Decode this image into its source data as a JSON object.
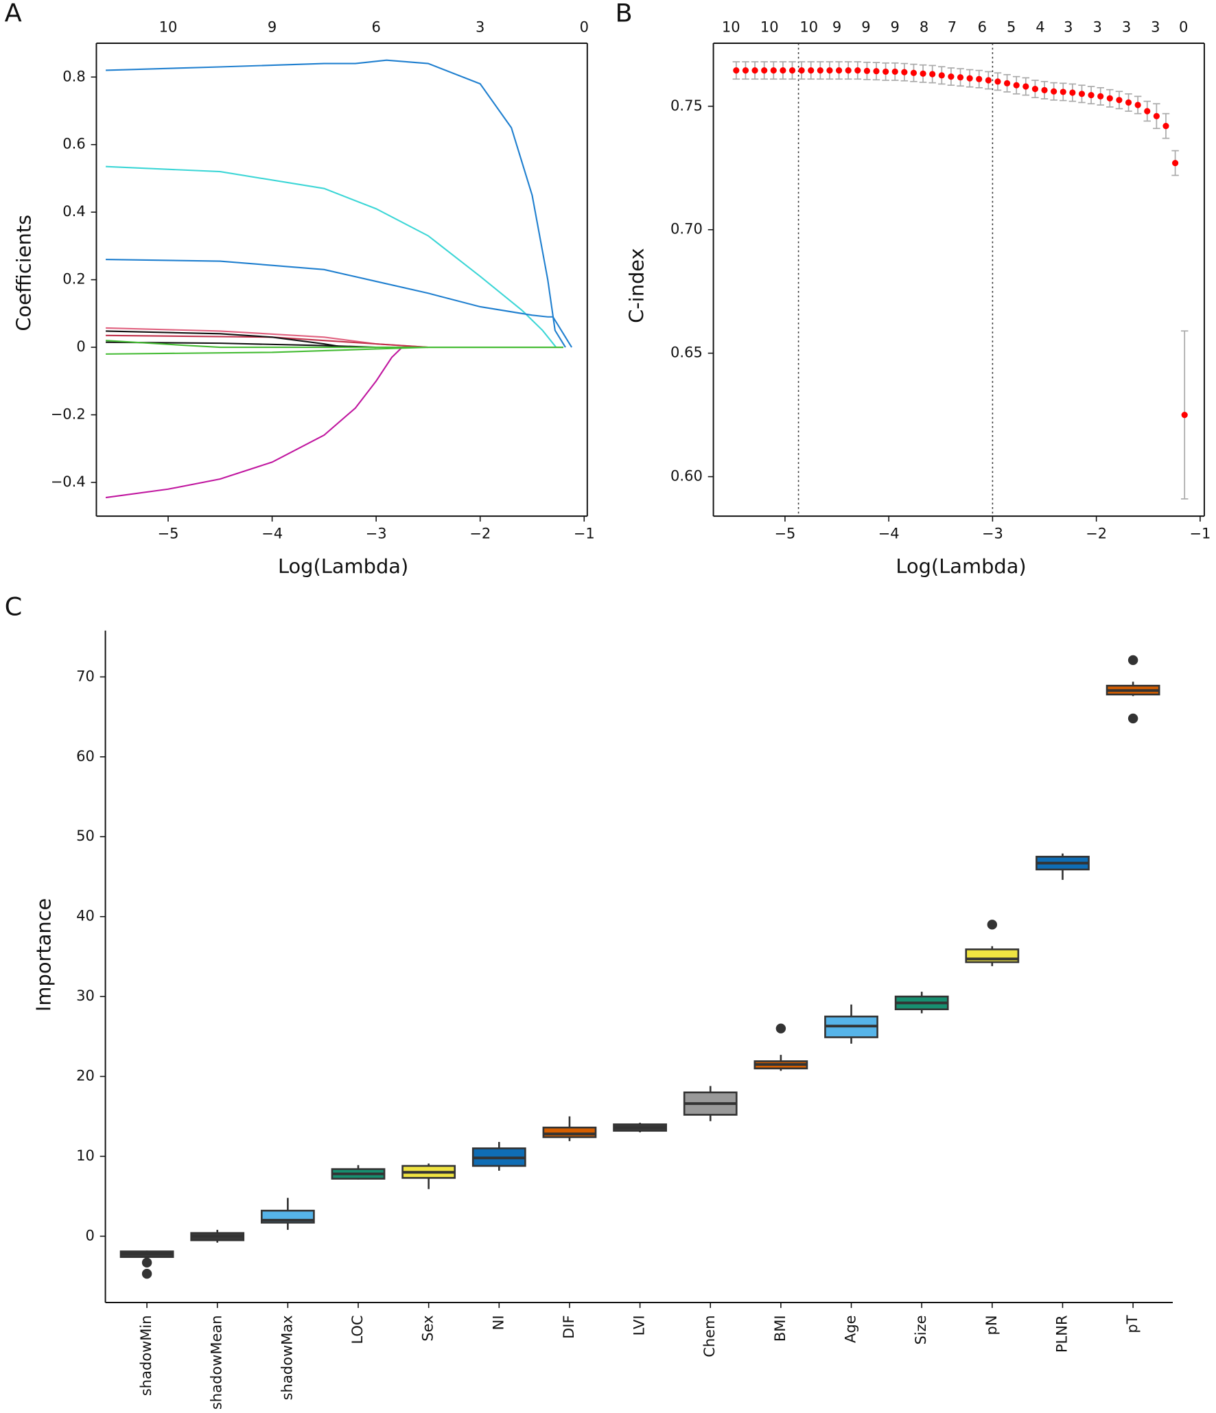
{
  "chart_data": [
    {
      "type": "line",
      "panel": "A",
      "xlabel": "Log(Lambda)",
      "ylabel": "Coefficients",
      "xlim": [
        -5.69,
        -0.97
      ],
      "ylim": [
        -0.5,
        0.9
      ],
      "xticks": [
        {
          "value": -5,
          "label": "−5"
        },
        {
          "value": -4,
          "label": "−4"
        },
        {
          "value": -3,
          "label": "−3"
        },
        {
          "value": -2,
          "label": "−2"
        },
        {
          "value": -1,
          "label": "−1"
        }
      ],
      "yticks": [
        {
          "value": -0.4,
          "label": "−0.4"
        },
        {
          "value": -0.2,
          "label": "−0.2"
        },
        0,
        0.2,
        0.4,
        0.6,
        0.8
      ],
      "top_ticks": [
        {
          "value": -5,
          "label": "10"
        },
        {
          "value": -4,
          "label": "9"
        },
        {
          "value": -3,
          "label": "6"
        },
        {
          "value": -2,
          "label": "3"
        },
        {
          "value": -1,
          "label": "0"
        }
      ],
      "series": [
        {
          "color": "#1f7fcf",
          "x": [
            -5.6,
            -4.5,
            -3.5,
            -3.2,
            -2.9,
            -2.5,
            -2.0,
            -1.7,
            -1.5,
            -1.35,
            -1.28,
            -1.18
          ],
          "values": [
            0.82,
            0.83,
            0.84,
            0.84,
            0.85,
            0.84,
            0.78,
            0.65,
            0.45,
            0.2,
            0.05,
            0
          ]
        },
        {
          "color": "#3cd6d6",
          "x": [
            -5.6,
            -4.5,
            -3.5,
            -3.0,
            -2.5,
            -2.0,
            -1.6,
            -1.4,
            -1.27
          ],
          "values": [
            0.535,
            0.52,
            0.47,
            0.41,
            0.33,
            0.21,
            0.11,
            0.05,
            0
          ]
        },
        {
          "color": "#1f7fcf",
          "x": [
            -5.6,
            -4.5,
            -3.5,
            -3.0,
            -2.5,
            -2.0,
            -1.5,
            -1.35,
            -1.3,
            -1.2,
            -1.12
          ],
          "values": [
            0.26,
            0.255,
            0.23,
            0.195,
            0.16,
            0.12,
            0.095,
            0.09,
            0.09,
            0.04,
            0
          ]
        },
        {
          "color": "#e0607e",
          "x": [
            -5.6,
            -4.5,
            -3.5,
            -3.0,
            -2.5
          ],
          "values": [
            0.057,
            0.048,
            0.03,
            0.01,
            0
          ]
        },
        {
          "color": "#c0304a",
          "x": [
            -5.6,
            -4.0,
            -3.0,
            -2.5
          ],
          "values": [
            0.035,
            0.03,
            0.01,
            0
          ]
        },
        {
          "color": "#111111",
          "x": [
            -5.6,
            -4.5,
            -4.0,
            -3.5,
            -3.3
          ],
          "values": [
            0.048,
            0.04,
            0.03,
            0.01,
            0
          ]
        },
        {
          "color": "#111111",
          "x": [
            -5.6,
            -4.5,
            -3.5,
            -3.0
          ],
          "values": [
            0.015,
            0.012,
            0.005,
            0
          ]
        },
        {
          "color": "#c0169f",
          "x": [
            -5.6,
            -5.0,
            -4.5,
            -4.0,
            -3.5,
            -3.2,
            -3.0,
            -2.85,
            -2.75
          ],
          "values": [
            -0.445,
            -0.42,
            -0.39,
            -0.34,
            -0.26,
            -0.18,
            -0.1,
            -0.03,
            0
          ]
        },
        {
          "color": "#44bb33",
          "x": [
            -5.6,
            -4.8,
            -4.5,
            -3.0,
            -2.5,
            -1.2
          ],
          "values": [
            0.02,
            0.005,
            0,
            0,
            0,
            0
          ]
        },
        {
          "color": "#44bb33",
          "x": [
            -5.6,
            -4.0,
            -3.0,
            -2.5,
            -1.2
          ],
          "values": [
            -0.02,
            -0.015,
            -0.005,
            0,
            0
          ]
        }
      ]
    },
    {
      "type": "scatter",
      "panel": "B",
      "xlabel": "Log(Lambda)",
      "ylabel": "C-index",
      "xlim": [
        -5.69,
        -0.96
      ],
      "ylim": [
        0.584,
        0.7755
      ],
      "color": "#ff0000",
      "error_color": "#aaaaaa",
      "xticks": [
        {
          "value": -5,
          "label": "−5"
        },
        {
          "value": -4,
          "label": "−4"
        },
        {
          "value": -3,
          "label": "−3"
        },
        {
          "value": -2,
          "label": "−2"
        },
        {
          "value": -1,
          "label": "−1"
        }
      ],
      "yticks": [
        {
          "value": 0.6,
          "label": "0.60"
        },
        0.65,
        {
          "value": 0.7,
          "label": "0.70"
        },
        0.75
      ],
      "top_ticks": [
        {
          "value": -5.52,
          "label": "10"
        },
        {
          "value": -5.15,
          "label": "10"
        },
        {
          "value": -4.77,
          "label": "10"
        },
        {
          "value": -4.5,
          "label": "9"
        },
        {
          "value": -4.22,
          "label": "9"
        },
        {
          "value": -3.94,
          "label": "9"
        },
        {
          "value": -3.66,
          "label": "8"
        },
        {
          "value": -3.39,
          "label": "7"
        },
        {
          "value": -3.1,
          "label": "6"
        },
        {
          "value": -2.82,
          "label": "5"
        },
        {
          "value": -2.54,
          "label": "4"
        },
        {
          "value": -2.27,
          "label": "3"
        },
        {
          "value": -1.99,
          "label": "3"
        },
        {
          "value": -1.71,
          "label": "3"
        },
        {
          "value": -1.43,
          "label": "3"
        },
        {
          "value": -1.16,
          "label": "0"
        }
      ],
      "vlines": [
        -4.87,
        -3.0
      ],
      "x": [
        -5.47,
        -5.38,
        -5.29,
        -5.2,
        -5.11,
        -5.02,
        -4.93,
        -4.84,
        -4.75,
        -4.66,
        -4.57,
        -4.48,
        -4.39,
        -4.3,
        -4.21,
        -4.12,
        -4.03,
        -3.94,
        -3.85,
        -3.76,
        -3.67,
        -3.58,
        -3.49,
        -3.4,
        -3.31,
        -3.22,
        -3.13,
        -3.04,
        -2.95,
        -2.86,
        -2.77,
        -2.68,
        -2.59,
        -2.5,
        -2.41,
        -2.32,
        -2.23,
        -2.14,
        -2.05,
        -1.96,
        -1.87,
        -1.78,
        -1.69,
        -1.6,
        -1.51,
        -1.42,
        -1.33,
        -1.24,
        -1.15
      ],
      "values": [
        0.7645,
        0.7645,
        0.7645,
        0.7645,
        0.7645,
        0.7645,
        0.7645,
        0.7645,
        0.7645,
        0.7645,
        0.7645,
        0.7645,
        0.7645,
        0.7645,
        0.7643,
        0.7642,
        0.764,
        0.764,
        0.7638,
        0.7635,
        0.7632,
        0.763,
        0.7625,
        0.762,
        0.7617,
        0.7613,
        0.761,
        0.7605,
        0.76,
        0.7593,
        0.7585,
        0.758,
        0.757,
        0.7565,
        0.756,
        0.7558,
        0.7555,
        0.755,
        0.7545,
        0.754,
        0.7532,
        0.7525,
        0.7515,
        0.7505,
        0.748,
        0.746,
        0.742,
        0.727,
        0.625
      ],
      "errors": [
        0.0035,
        0.0035,
        0.0035,
        0.0035,
        0.0035,
        0.0035,
        0.0035,
        0.0035,
        0.0035,
        0.0035,
        0.0035,
        0.0035,
        0.0035,
        0.0035,
        0.0035,
        0.0035,
        0.0035,
        0.0035,
        0.0035,
        0.0035,
        0.0035,
        0.0035,
        0.0035,
        0.0035,
        0.0035,
        0.0035,
        0.0035,
        0.0035,
        0.0035,
        0.0035,
        0.0035,
        0.0035,
        0.0035,
        0.0035,
        0.0035,
        0.0035,
        0.0035,
        0.0035,
        0.0035,
        0.0035,
        0.0035,
        0.0035,
        0.0035,
        0.0035,
        0.004,
        0.005,
        0.005,
        0.005,
        0.034
      ]
    },
    {
      "type": "box",
      "panel": "C",
      "ylabel": "Importance",
      "ylim": [
        -8.3,
        75.8
      ],
      "yticks": [
        0,
        10,
        20,
        30,
        40,
        50,
        60,
        70
      ],
      "categories": [
        "shadowMin",
        "shadowMean",
        "shadowMax",
        "LOC",
        "Sex",
        "NI",
        "DIF",
        "LVI",
        "Chem",
        "BMI",
        "Age",
        "Size",
        "pN",
        "PLNR",
        "pT"
      ],
      "boxes": [
        {
          "min": -2.7,
          "q1": -2.6,
          "median": -2.2,
          "q3": -1.9,
          "max": -1.8,
          "outliers": [
            -3.3,
            -4.7
          ],
          "color": "#3a3a3a"
        },
        {
          "min": -0.8,
          "q1": -0.5,
          "median": 0,
          "q3": 0.4,
          "max": 0.8,
          "outliers": [],
          "color": "#3a3a3a"
        },
        {
          "min": 0.8,
          "q1": 1.7,
          "median": 2.0,
          "q3": 3.2,
          "max": 4.8,
          "outliers": [],
          "color": "#56b4e9"
        },
        {
          "min": 7.1,
          "q1": 7.2,
          "median": 7.8,
          "q3": 8.4,
          "max": 8.9,
          "outliers": [],
          "color": "#178f70"
        },
        {
          "min": 5.9,
          "q1": 7.3,
          "median": 8.0,
          "q3": 8.8,
          "max": 9.1,
          "outliers": [],
          "color": "#f0e442"
        },
        {
          "min": 8.2,
          "q1": 8.8,
          "median": 9.8,
          "q3": 11.0,
          "max": 11.8,
          "outliers": [],
          "color": "#0f6db5"
        },
        {
          "min": 11.9,
          "q1": 12.4,
          "median": 12.8,
          "q3": 13.6,
          "max": 15.0,
          "outliers": [],
          "color": "#d55e00"
        },
        {
          "min": 13.0,
          "q1": 13.2,
          "median": 13.6,
          "q3": 14.0,
          "max": 14.2,
          "outliers": [],
          "color": "#3a3a3a"
        },
        {
          "min": 14.4,
          "q1": 15.2,
          "median": 16.6,
          "q3": 18.0,
          "max": 18.8,
          "outliers": [],
          "color": "#999999"
        },
        {
          "min": 20.7,
          "q1": 21.0,
          "median": 21.5,
          "q3": 21.9,
          "max": 22.7,
          "outliers": [
            26.0
          ],
          "color": "#d55e00"
        },
        {
          "min": 24.1,
          "q1": 24.9,
          "median": 26.3,
          "q3": 27.5,
          "max": 29.0,
          "outliers": [],
          "color": "#56b4e9"
        },
        {
          "min": 27.9,
          "q1": 28.4,
          "median": 29.2,
          "q3": 30.0,
          "max": 30.6,
          "outliers": [],
          "color": "#178f70"
        },
        {
          "min": 33.8,
          "q1": 34.3,
          "median": 34.7,
          "q3": 35.9,
          "max": 36.3,
          "outliers": [
            39.0
          ],
          "color": "#f0e442"
        },
        {
          "min": 44.6,
          "q1": 45.9,
          "median": 46.7,
          "q3": 47.5,
          "max": 47.9,
          "outliers": [],
          "color": "#0f6db5"
        },
        {
          "min": 67.6,
          "q1": 67.8,
          "median": 68.3,
          "q3": 68.9,
          "max": 69.4,
          "outliers": [
            72.1,
            64.8
          ],
          "color": "#d55e00"
        }
      ]
    }
  ]
}
